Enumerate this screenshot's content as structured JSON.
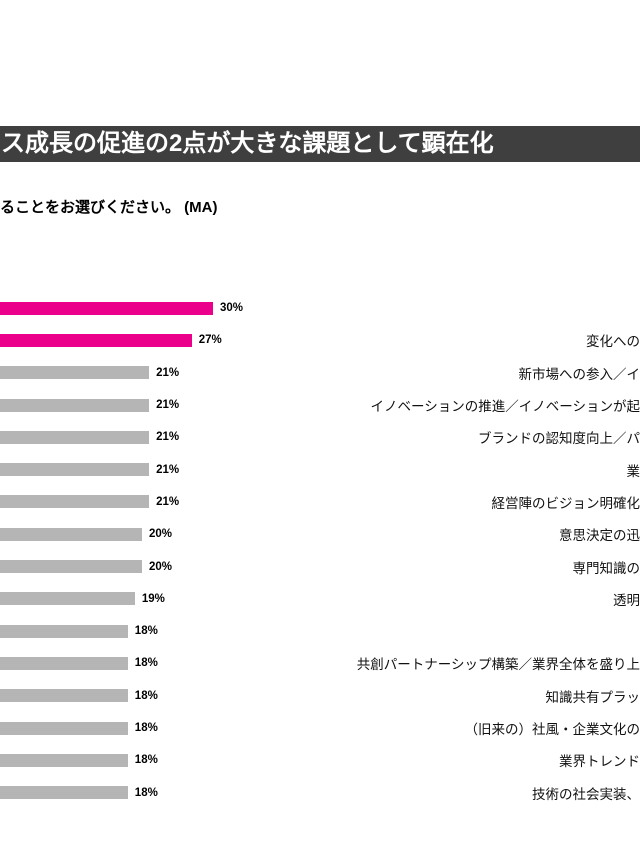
{
  "banner": {
    "title": "ス成長の促進の2点が大きな課題として顕在化",
    "background": "#3f3f3f",
    "text_color": "#ffffff"
  },
  "question": {
    "text": "ることをお選びください。 (MA)"
  },
  "chart_data": {
    "type": "bar",
    "orientation": "horizontal",
    "title": "ス成長の促進の2点が大きな課題として顕在化",
    "value_suffix": "%",
    "xlim": [
      0,
      35
    ],
    "legend": "none",
    "grid": false,
    "layout_note": "horizontal bars flush to the cropped left edge; category labels right-aligned and clipped at the right edge of the image",
    "colors": {
      "highlight": "#EB008B",
      "default": "#B5B5B5",
      "value_label": "#000000"
    },
    "rows": [
      {
        "value": 30,
        "highlight": true,
        "label": ""
      },
      {
        "value": 27,
        "highlight": true,
        "label": "変化への"
      },
      {
        "value": 21,
        "highlight": false,
        "label": "新市場への参入／イ"
      },
      {
        "value": 21,
        "highlight": false,
        "label": "イノベーションの推進／イノベーションが起"
      },
      {
        "value": 21,
        "highlight": false,
        "label": "ブランドの認知度向上／パ"
      },
      {
        "value": 21,
        "highlight": false,
        "label": "業"
      },
      {
        "value": 21,
        "highlight": false,
        "label": "経営陣のビジョン明確化"
      },
      {
        "value": 20,
        "highlight": false,
        "label": "意思決定の迅"
      },
      {
        "value": 20,
        "highlight": false,
        "label": "専門知識の"
      },
      {
        "value": 19,
        "highlight": false,
        "label": "透明"
      },
      {
        "value": 18,
        "highlight": false,
        "label": ""
      },
      {
        "value": 18,
        "highlight": false,
        "label": "共創パートナーシップ構築／業界全体を盛り上"
      },
      {
        "value": 18,
        "highlight": false,
        "label": "知識共有プラッ"
      },
      {
        "value": 18,
        "highlight": false,
        "label": "（旧来の）社風・企業文化の"
      },
      {
        "value": 18,
        "highlight": false,
        "label": "業界トレンド"
      },
      {
        "value": 18,
        "highlight": false,
        "label": "技術の社会実装、"
      }
    ]
  }
}
